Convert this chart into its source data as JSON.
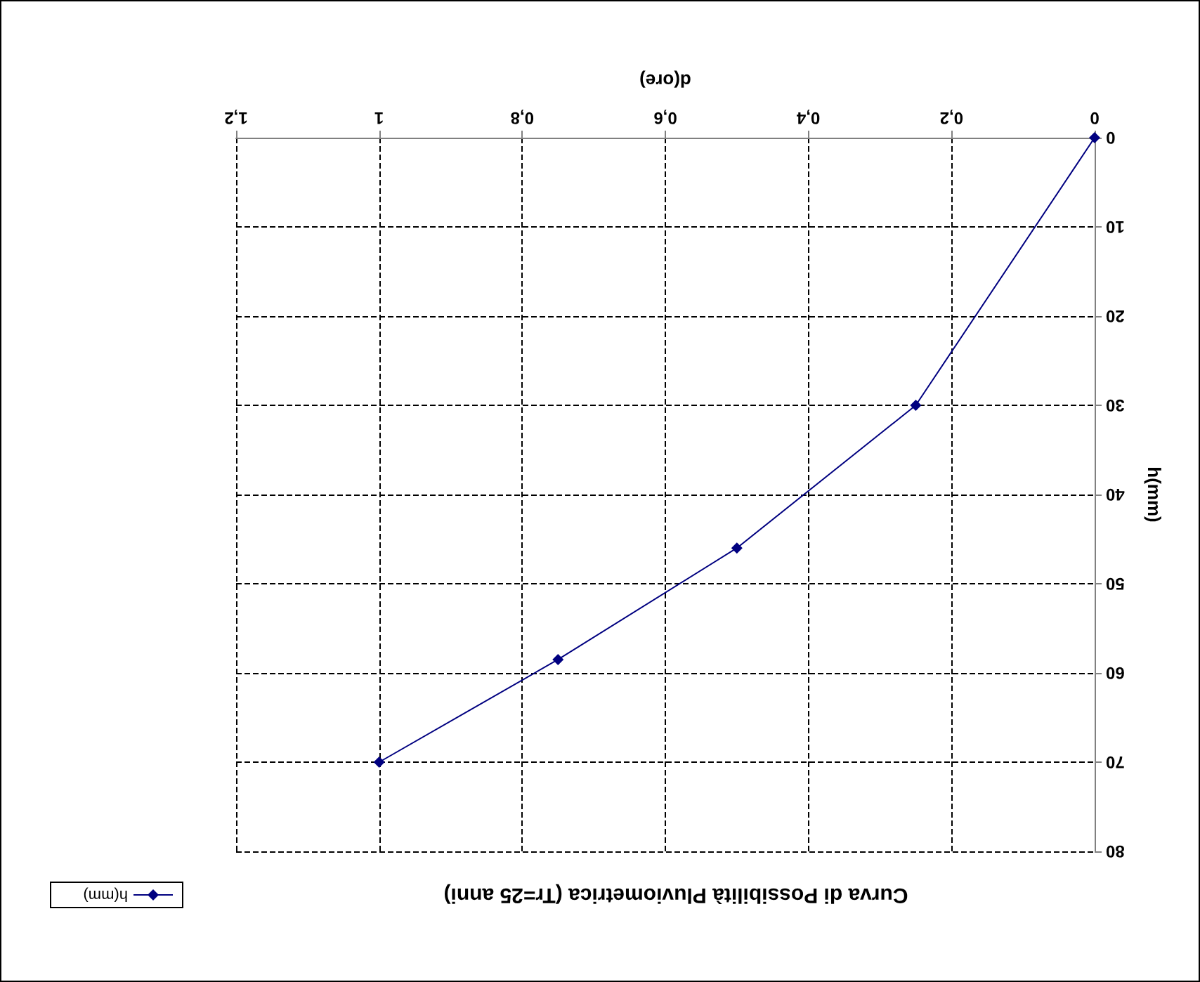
{
  "chart_data": {
    "type": "line",
    "title": "Curva di Possibilità Pluviometrica (Tr=25 anni)",
    "xlabel": "d(ore)",
    "ylabel": "h(mm)",
    "x": [
      0,
      0.25,
      0.5,
      0.75,
      1
    ],
    "series": [
      {
        "name": "h(mm)",
        "color": "#000080",
        "values": [
          0,
          30,
          46,
          58.5,
          70
        ]
      }
    ],
    "xlim": [
      1.2,
      0
    ],
    "xticks": [
      0,
      {
        "value": 0.2,
        "label": "0,2"
      },
      {
        "value": 0.4,
        "label": "0,4"
      },
      {
        "value": 0.6,
        "label": "0,6"
      },
      {
        "value": 0.8,
        "label": "0,8"
      },
      1,
      {
        "value": 1.2,
        "label": "1,2"
      }
    ],
    "ylim": [
      80,
      0
    ],
    "yticks": [
      0,
      10,
      20,
      30,
      40,
      50,
      60,
      70,
      80
    ],
    "grid": true,
    "legend": "bottom left",
    "marker": "diamond",
    "line_style": "solid"
  }
}
